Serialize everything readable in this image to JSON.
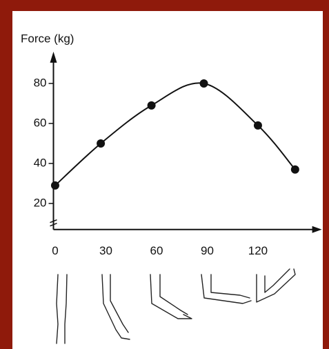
{
  "chart_data": {
    "type": "line",
    "y_label": "Force (kg)",
    "x": [
      0,
      27,
      57,
      88,
      120,
      142
    ],
    "series": [
      {
        "color": "#111111",
        "values": [
          29,
          50,
          69,
          80,
          59,
          37
        ]
      }
    ],
    "xlim": [
      -1,
      157
    ],
    "ylim": [
      7,
      89
    ],
    "xticks": [
      0,
      30,
      60,
      90,
      120
    ],
    "yticks": [
      20,
      40,
      60,
      80
    ]
  }
}
